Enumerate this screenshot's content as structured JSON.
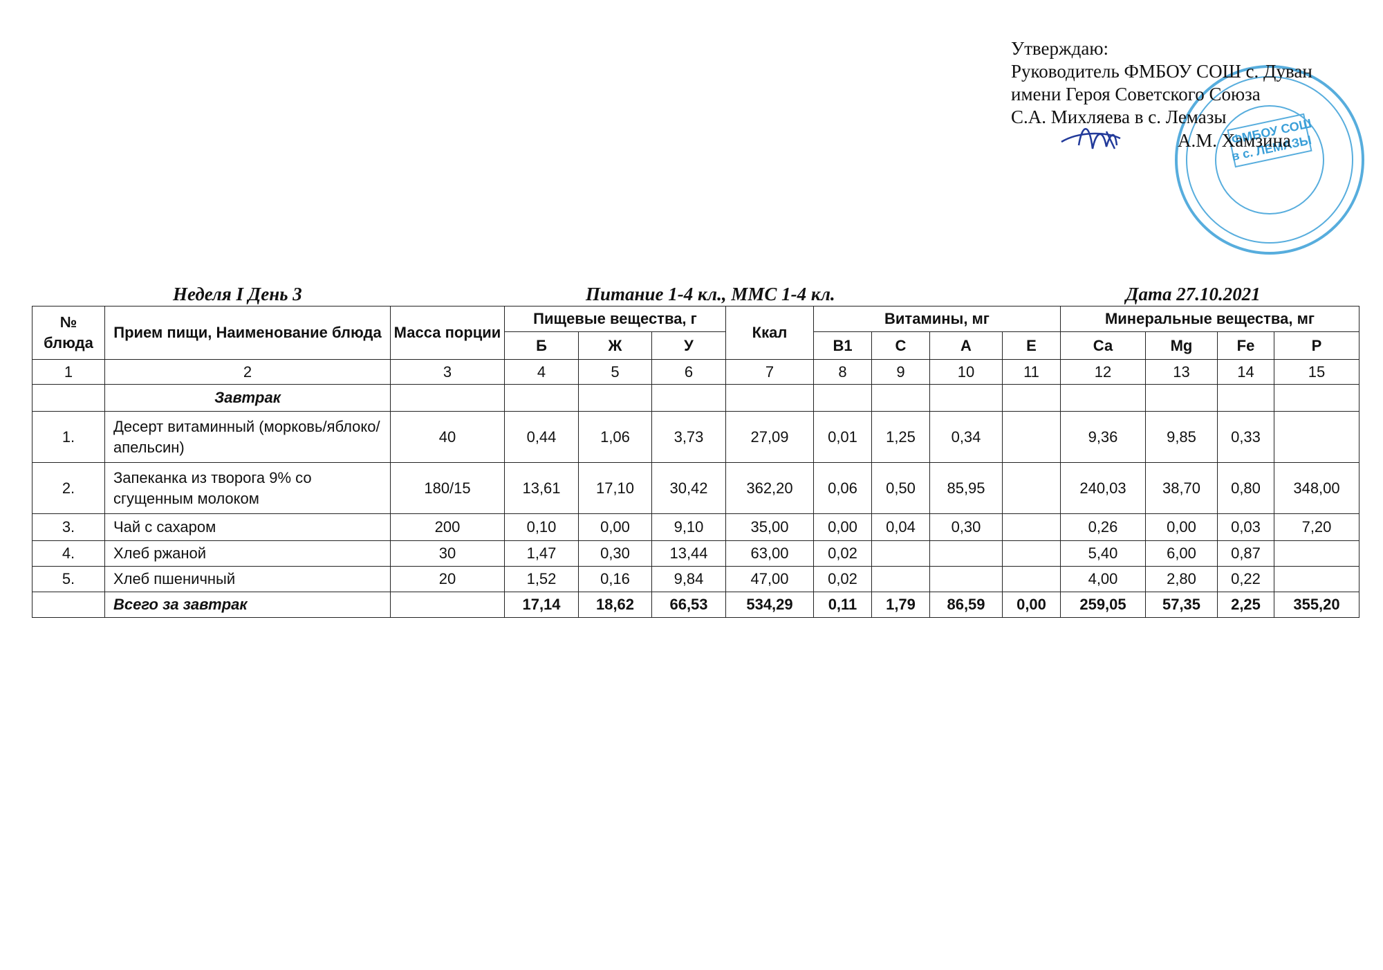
{
  "approval": {
    "lines": [
      "Утверждаю:",
      "Руководитель ФМБОУ СОШ с. Дуван",
      "имени Героя Советского Союза",
      "С.А. Михляева в с. Лемазы",
      "А.М. Хамзина"
    ]
  },
  "stamp": {
    "text": [
      "ФМБОУ СОШ",
      "в с. ЛЕМАЗЫ"
    ]
  },
  "caption": {
    "week": "Неделя I День 3",
    "title": "Питание  1-4 кл., ММС 1-4 кл.",
    "date": "Дата  27.10.2021"
  },
  "table": {
    "header": {
      "no": "№ блюда",
      "name": "Прием пищи, Наименование блюда",
      "mass": "Масса порции",
      "nutrients": "Пищевые вещества, г",
      "kcal": "Ккал",
      "vitamins": "Витамины, мг",
      "minerals": "Минеральные вещества, мг",
      "sub": [
        "Б",
        "Ж",
        "У",
        "В1",
        "С",
        "А",
        "Е",
        "Са",
        "Mg",
        "Fe",
        "P"
      ]
    },
    "numbers": [
      "1",
      "2",
      "3",
      "4",
      "5",
      "6",
      "7",
      "8",
      "9",
      "10",
      "11",
      "12",
      "13",
      "14",
      "15"
    ],
    "section": "Завтрак",
    "rows": [
      [
        "1.",
        "Десерт витаминный (морковь/яблоко/апельсин)",
        "40",
        "0,44",
        "1,06",
        "3,73",
        "27,09",
        "0,01",
        "1,25",
        "0,34",
        null,
        "9,36",
        "9,85",
        "0,33",
        null
      ],
      [
        "2.",
        "Запеканка из творога 9% со сгущенным молоком",
        "180/15",
        "13,61",
        "17,10",
        "30,42",
        "362,20",
        "0,06",
        "0,50",
        "85,95",
        null,
        "240,03",
        "38,70",
        "0,80",
        "348,00"
      ],
      [
        "3.",
        "Чай с сахаром",
        "200",
        "0,10",
        "0,00",
        "9,10",
        "35,00",
        "0,00",
        "0,04",
        "0,30",
        null,
        "0,26",
        "0,00",
        "0,03",
        "7,20"
      ],
      [
        "4.",
        "Хлеб ржаной",
        "30",
        "1,47",
        "0,30",
        "13,44",
        "63,00",
        "0,02",
        null,
        null,
        null,
        "5,40",
        "6,00",
        "0,87",
        null
      ],
      [
        "5.",
        "Хлеб пшеничный",
        "20",
        "1,52",
        "0,16",
        "9,84",
        "47,00",
        "0,02",
        null,
        null,
        null,
        "4,00",
        "2,80",
        "0,22",
        null
      ]
    ],
    "total": {
      "label": "Всего за завтрак",
      "values": [
        "17,14",
        "18,62",
        "66,53",
        "534,29",
        "0,11",
        "1,79",
        "86,59",
        "0,00",
        "259,05",
        "57,35",
        "2,25",
        "355,20"
      ]
    }
  }
}
